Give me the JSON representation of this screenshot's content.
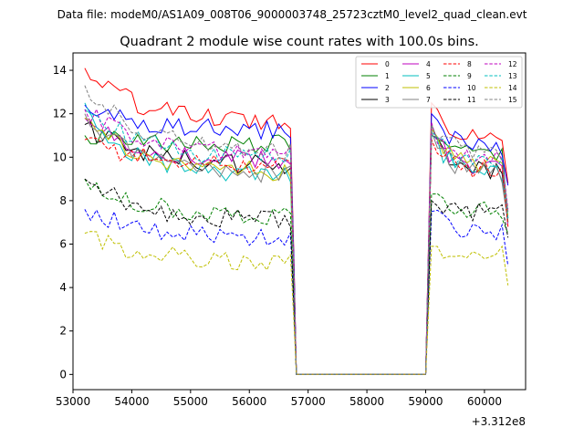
{
  "chart_data": {
    "type": "line",
    "suptitle": "Data file: modeM0/AS1A09_008T06_9000003748_25723cztM0_level2_quad_clean.evt",
    "title": "Quadrant 2 module wise count rates with 100.0s bins.",
    "xlabel": "",
    "ylabel": "",
    "x_offset_label": "+3.312e8",
    "xlim": [
      53000,
      60700
    ],
    "ylim": [
      -0.7,
      14.8
    ],
    "x_ticks": [
      53000,
      54000,
      55000,
      56000,
      57000,
      58000,
      59000,
      60000
    ],
    "x_tick_labels": [
      "53000",
      "54000",
      "55000",
      "56000",
      "57000",
      "58000",
      "59000",
      "60000"
    ],
    "y_ticks": [
      0,
      2,
      4,
      6,
      8,
      10,
      12,
      14
    ],
    "y_tick_labels": [
      "0",
      "2",
      "4",
      "6",
      "8",
      "10",
      "12",
      "14"
    ],
    "gap_start": 56800,
    "gap_end": 59000,
    "seg1_x_start": 53200,
    "seg1_x_end": 56700,
    "seg2_x_start": 59100,
    "seg2_x_end": 60400,
    "legend_position": "upper-right",
    "series": [
      {
        "name": "0",
        "color": "#ff0000",
        "dash": "solid",
        "level1": 11.6,
        "level2": 11.0,
        "start1": 14.1,
        "start2": 12.5,
        "end2": 8.8
      },
      {
        "name": "1",
        "color": "#008000",
        "dash": "solid",
        "level1": 10.6,
        "level2": 10.0,
        "start1": 11.0,
        "start2": 11.5,
        "end2": 7.0
      },
      {
        "name": "2",
        "color": "#0000ff",
        "dash": "solid",
        "level1": 11.2,
        "level2": 10.5,
        "start1": 12.4,
        "start2": 12.0,
        "end2": 8.7
      },
      {
        "name": "3",
        "color": "#000000",
        "dash": "solid",
        "level1": 9.6,
        "level2": 9.3,
        "start1": 11.5,
        "start2": 11.0,
        "end2": 7.2
      },
      {
        "name": "4",
        "color": "#bf00bf",
        "dash": "solid",
        "level1": 9.8,
        "level2": 9.5,
        "start1": 11.8,
        "start2": 11.3,
        "end2": 6.8
      },
      {
        "name": "5",
        "color": "#00bfbf",
        "dash": "solid",
        "level1": 9.0,
        "level2": 9.3,
        "start1": 12.2,
        "start2": 11.0,
        "end2": 7.5
      },
      {
        "name": "6",
        "color": "#bfbf00",
        "dash": "solid",
        "level1": 9.3,
        "level2": 9.6,
        "start1": 11.8,
        "start2": 11.3,
        "end2": 7.3
      },
      {
        "name": "7",
        "color": "#808080",
        "dash": "solid",
        "level1": 9.2,
        "level2": 9.2,
        "start1": 12.0,
        "start2": 11.2,
        "end2": 7.0
      },
      {
        "name": "8",
        "color": "#ff0000",
        "dash": "dashed",
        "level1": 9.6,
        "level2": 9.4,
        "start1": 10.8,
        "start2": 10.8,
        "end2": 6.8
      },
      {
        "name": "9",
        "color": "#008000",
        "dash": "dashed",
        "level1": 7.3,
        "level2": 7.6,
        "start1": 9.0,
        "start2": 8.3,
        "end2": 6.5
      },
      {
        "name": "10",
        "color": "#0000ff",
        "dash": "dashed",
        "level1": 6.3,
        "level2": 6.6,
        "start1": 7.6,
        "start2": 7.5,
        "end2": 5.0
      },
      {
        "name": "11",
        "color": "#000000",
        "dash": "dashed",
        "level1": 7.1,
        "level2": 7.4,
        "start1": 9.0,
        "start2": 8.0,
        "end2": 6.3
      },
      {
        "name": "12",
        "color": "#bf00bf",
        "dash": "dashed",
        "level1": 10.2,
        "level2": 10.0,
        "start1": 12.2,
        "start2": 11.6,
        "end2": 7.6
      },
      {
        "name": "13",
        "color": "#00bfbf",
        "dash": "dashed",
        "level1": 9.9,
        "level2": 9.7,
        "start1": 12.5,
        "start2": 11.2,
        "end2": 7.2
      },
      {
        "name": "14",
        "color": "#bfbf00",
        "dash": "dashed",
        "level1": 5.2,
        "level2": 5.5,
        "start1": 6.5,
        "start2": 5.9,
        "end2": 4.1
      },
      {
        "name": "15",
        "color": "#808080",
        "dash": "dashed",
        "level1": 10.3,
        "level2": 10.2,
        "start1": 13.3,
        "start2": 11.5,
        "end2": 7.5
      }
    ]
  }
}
